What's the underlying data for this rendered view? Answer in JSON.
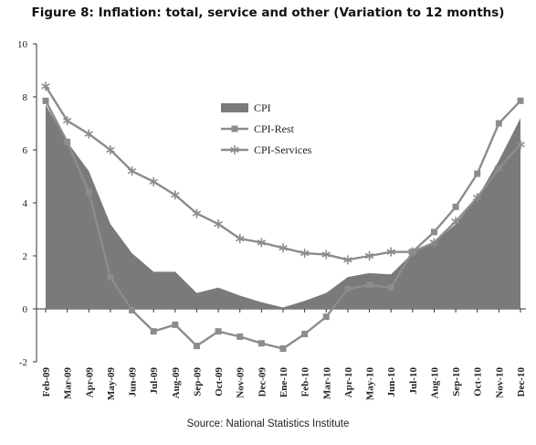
{
  "title": "Figure  8: Inflation: total, service and other (Variation to 12 months)",
  "source": "Source: National Statistics Institute",
  "colors": {
    "cpi_area": "#7a7a7a",
    "cpi_rest": "#8c8c8c",
    "cpi_services": "#8c8c8c"
  },
  "chart_data": {
    "type": "area",
    "x": [
      "Feb-09",
      "Mar-09",
      "Apr-09",
      "May-09",
      "Jun-09",
      "Jul-09",
      "Aug-09",
      "Sep-09",
      "Oct-09",
      "Nov-09",
      "Dec-09",
      "Ene-10",
      "Feb-10",
      "Mar-10",
      "Apr-10",
      "May-10",
      "Jun-10",
      "Jul-10",
      "Aug-10",
      "Sep-10",
      "Oct-10",
      "Nov-10",
      "Dec-10"
    ],
    "yticks": [
      -2,
      0,
      2,
      4,
      6,
      8,
      10
    ],
    "ylim": [
      -2,
      10
    ],
    "grid": false,
    "legend": "upper-center",
    "series": [
      {
        "name": "CPI",
        "kind": "area",
        "values": [
          7.7,
          6.3,
          5.2,
          3.2,
          2.1,
          1.4,
          1.4,
          0.6,
          0.8,
          0.5,
          0.25,
          0.05,
          0.3,
          0.6,
          1.2,
          1.35,
          1.3,
          2.1,
          2.5,
          3.2,
          4.2,
          5.6,
          7.2
        ]
      },
      {
        "name": "CPI-Rest",
        "kind": "line",
        "marker": "square",
        "values": [
          7.85,
          6.3,
          4.4,
          1.2,
          -0.05,
          -0.85,
          -0.6,
          -1.4,
          -0.85,
          -1.05,
          -1.3,
          -1.5,
          -0.95,
          -0.3,
          0.75,
          0.9,
          0.8,
          2.15,
          2.9,
          3.85,
          5.1,
          7.0,
          7.85
        ]
      },
      {
        "name": "CPI-Services",
        "kind": "line",
        "marker": "asterisk",
        "values": [
          8.4,
          7.1,
          6.6,
          6.0,
          5.2,
          4.8,
          4.3,
          3.6,
          3.2,
          2.65,
          2.5,
          2.3,
          2.1,
          2.05,
          1.85,
          2.0,
          2.15,
          2.15,
          2.5,
          3.3,
          4.2,
          5.3,
          6.2
        ]
      }
    ]
  }
}
